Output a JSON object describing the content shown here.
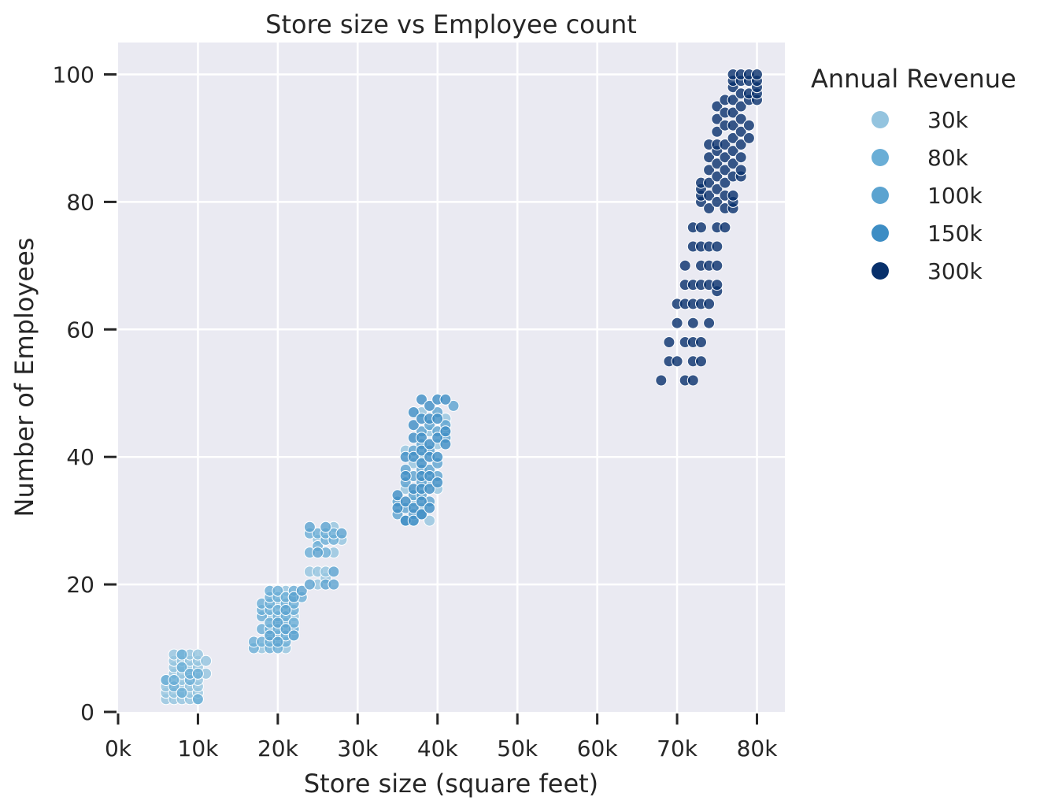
{
  "chart_data": {
    "type": "scatter",
    "title": "Store size vs Employee count",
    "xlabel": "Store size (square feet)",
    "ylabel": "Number of Employees",
    "xlim": [
      0,
      83500
    ],
    "ylim": [
      0,
      105
    ],
    "x_ticks": [
      {
        "value": 0,
        "label": "0k"
      },
      {
        "value": 10000,
        "label": "10k"
      },
      {
        "value": 20000,
        "label": "20k"
      },
      {
        "value": 30000,
        "label": "30k"
      },
      {
        "value": 40000,
        "label": "40k"
      },
      {
        "value": 50000,
        "label": "50k"
      },
      {
        "value": 60000,
        "label": "60k"
      },
      {
        "value": 70000,
        "label": "70k"
      },
      {
        "value": 80000,
        "label": "80k"
      }
    ],
    "y_ticks": [
      {
        "value": 0,
        "label": "0"
      },
      {
        "value": 20,
        "label": "20"
      },
      {
        "value": 40,
        "label": "40"
      },
      {
        "value": 60,
        "label": "60"
      },
      {
        "value": 80,
        "label": "80"
      },
      {
        "value": 100,
        "label": "100"
      }
    ],
    "grid": true,
    "legend": {
      "title": "Annual Revenue",
      "placement": "outside-right"
    },
    "series": [
      {
        "name": "30k",
        "color": "#94c4df",
        "points": [
          [
            6000,
            2
          ],
          [
            6000,
            3
          ],
          [
            6000,
            4
          ],
          [
            6000,
            5
          ],
          [
            7000,
            2
          ],
          [
            7000,
            3
          ],
          [
            7000,
            5
          ],
          [
            7000,
            6
          ],
          [
            7000,
            7
          ],
          [
            7000,
            8
          ],
          [
            7000,
            9
          ],
          [
            8000,
            2
          ],
          [
            8000,
            3
          ],
          [
            8000,
            4
          ],
          [
            8000,
            5
          ],
          [
            8000,
            6
          ],
          [
            8000,
            7
          ],
          [
            8000,
            8
          ],
          [
            8000,
            9
          ],
          [
            9000,
            2
          ],
          [
            9000,
            3
          ],
          [
            9000,
            4
          ],
          [
            9000,
            6
          ],
          [
            9000,
            7
          ],
          [
            9000,
            8
          ],
          [
            9000,
            9
          ],
          [
            10000,
            2
          ],
          [
            10000,
            3
          ],
          [
            10000,
            4
          ],
          [
            10000,
            5
          ],
          [
            10000,
            6
          ],
          [
            10000,
            7
          ],
          [
            10000,
            8
          ],
          [
            10000,
            9
          ],
          [
            11000,
            6
          ],
          [
            11000,
            8
          ],
          [
            18000,
            10
          ],
          [
            19000,
            12
          ],
          [
            19000,
            15
          ],
          [
            20000,
            11
          ],
          [
            20000,
            14
          ],
          [
            20000,
            17
          ],
          [
            21000,
            10
          ],
          [
            21000,
            13
          ],
          [
            21000,
            16
          ],
          [
            21000,
            19
          ],
          [
            22000,
            12
          ],
          [
            22000,
            15
          ],
          [
            24000,
            22
          ],
          [
            25000,
            20
          ],
          [
            25000,
            22
          ],
          [
            25000,
            27
          ],
          [
            26000,
            21
          ],
          [
            26000,
            22
          ],
          [
            27000,
            25
          ],
          [
            27000,
            29
          ],
          [
            28000,
            27
          ],
          [
            36000,
            35
          ],
          [
            36000,
            41
          ],
          [
            37000,
            30
          ],
          [
            37000,
            33
          ],
          [
            37000,
            39
          ],
          [
            38000,
            32
          ],
          [
            38000,
            40
          ],
          [
            38000,
            47
          ],
          [
            39000,
            30
          ],
          [
            39000,
            36
          ],
          [
            39000,
            44
          ],
          [
            40000,
            35
          ],
          [
            40000,
            42
          ],
          [
            41000,
            44
          ],
          [
            41000,
            46
          ]
        ]
      },
      {
        "name": "80k",
        "color": "#6aaed6",
        "points": [
          [
            6000,
            5
          ],
          [
            7000,
            4
          ],
          [
            7000,
            5
          ],
          [
            8000,
            3
          ],
          [
            8000,
            7
          ],
          [
            8000,
            9
          ],
          [
            9000,
            5
          ],
          [
            9000,
            6
          ],
          [
            10000,
            2
          ],
          [
            10000,
            6
          ],
          [
            17000,
            10
          ],
          [
            17000,
            11
          ],
          [
            18000,
            11
          ],
          [
            18000,
            13
          ],
          [
            18000,
            15
          ],
          [
            18000,
            16
          ],
          [
            18000,
            17
          ],
          [
            19000,
            10
          ],
          [
            19000,
            11
          ],
          [
            19000,
            13
          ],
          [
            19000,
            14
          ],
          [
            19000,
            16
          ],
          [
            19000,
            17
          ],
          [
            19000,
            18
          ],
          [
            19000,
            19
          ],
          [
            20000,
            10
          ],
          [
            20000,
            12
          ],
          [
            20000,
            13
          ],
          [
            20000,
            15
          ],
          [
            20000,
            16
          ],
          [
            20000,
            18
          ],
          [
            20000,
            19
          ],
          [
            21000,
            11
          ],
          [
            21000,
            12
          ],
          [
            21000,
            14
          ],
          [
            21000,
            15
          ],
          [
            21000,
            17
          ],
          [
            21000,
            18
          ],
          [
            22000,
            13
          ],
          [
            22000,
            14
          ],
          [
            22000,
            16
          ],
          [
            22000,
            17
          ],
          [
            22000,
            18
          ],
          [
            22000,
            19
          ],
          [
            23000,
            18
          ],
          [
            24000,
            25
          ],
          [
            24000,
            28
          ],
          [
            25000,
            26
          ],
          [
            25000,
            28
          ],
          [
            26000,
            25
          ],
          [
            26000,
            27
          ],
          [
            26000,
            28
          ],
          [
            27000,
            27
          ],
          [
            27000,
            28
          ]
        ]
      },
      {
        "name": "100k",
        "color": "#5ba3d0",
        "points": [
          [
            19000,
            12
          ],
          [
            20000,
            11
          ],
          [
            20000,
            14
          ],
          [
            21000,
            13
          ],
          [
            21000,
            16
          ],
          [
            22000,
            12
          ],
          [
            22000,
            18
          ],
          [
            23000,
            19
          ],
          [
            24000,
            20
          ],
          [
            24000,
            29
          ],
          [
            25000,
            25
          ],
          [
            26000,
            20
          ],
          [
            26000,
            29
          ],
          [
            27000,
            20
          ],
          [
            27000,
            22
          ],
          [
            28000,
            28
          ],
          [
            35000,
            31
          ],
          [
            35000,
            33
          ],
          [
            36000,
            30
          ],
          [
            36000,
            32
          ],
          [
            36000,
            36
          ],
          [
            36000,
            38
          ],
          [
            37000,
            31
          ],
          [
            37000,
            34
          ],
          [
            37000,
            37
          ],
          [
            37000,
            41
          ],
          [
            38000,
            31
          ],
          [
            38000,
            34
          ],
          [
            38000,
            36
          ],
          [
            38000,
            38
          ],
          [
            38000,
            42
          ],
          [
            38000,
            44
          ],
          [
            39000,
            33
          ],
          [
            39000,
            38
          ],
          [
            39000,
            41
          ],
          [
            39000,
            45
          ],
          [
            40000,
            37
          ],
          [
            40000,
            39
          ],
          [
            40000,
            44
          ],
          [
            40000,
            47
          ],
          [
            41000,
            43
          ],
          [
            41000,
            45
          ],
          [
            42000,
            48
          ]
        ]
      },
      {
        "name": "150k",
        "color": "#3d8dc4",
        "points": [
          [
            35000,
            32
          ],
          [
            35000,
            34
          ],
          [
            36000,
            30
          ],
          [
            36000,
            33
          ],
          [
            36000,
            37
          ],
          [
            36000,
            40
          ],
          [
            37000,
            30
          ],
          [
            37000,
            32
          ],
          [
            37000,
            35
          ],
          [
            37000,
            40
          ],
          [
            37000,
            43
          ],
          [
            37000,
            45
          ],
          [
            37000,
            47
          ],
          [
            38000,
            31
          ],
          [
            38000,
            33
          ],
          [
            38000,
            35
          ],
          [
            38000,
            37
          ],
          [
            38000,
            39
          ],
          [
            38000,
            41
          ],
          [
            38000,
            43
          ],
          [
            38000,
            46
          ],
          [
            38000,
            49
          ],
          [
            39000,
            32
          ],
          [
            39000,
            35
          ],
          [
            39000,
            37
          ],
          [
            39000,
            40
          ],
          [
            39000,
            42
          ],
          [
            39000,
            46
          ],
          [
            39000,
            48
          ],
          [
            40000,
            36
          ],
          [
            40000,
            40
          ],
          [
            40000,
            43
          ],
          [
            40000,
            46
          ],
          [
            40000,
            49
          ],
          [
            41000,
            42
          ],
          [
            41000,
            44
          ],
          [
            41000,
            49
          ]
        ]
      },
      {
        "name": "300k",
        "color": "#08306b",
        "points": [
          [
            68000,
            52
          ],
          [
            69000,
            55
          ],
          [
            69000,
            58
          ],
          [
            70000,
            55
          ],
          [
            70000,
            61
          ],
          [
            70000,
            64
          ],
          [
            71000,
            52
          ],
          [
            71000,
            58
          ],
          [
            71000,
            64
          ],
          [
            71000,
            67
          ],
          [
            71000,
            70
          ],
          [
            72000,
            52
          ],
          [
            72000,
            55
          ],
          [
            72000,
            58
          ],
          [
            72000,
            61
          ],
          [
            72000,
            64
          ],
          [
            72000,
            67
          ],
          [
            72000,
            73
          ],
          [
            72000,
            76
          ],
          [
            73000,
            55
          ],
          [
            73000,
            58
          ],
          [
            73000,
            64
          ],
          [
            73000,
            67
          ],
          [
            73000,
            70
          ],
          [
            73000,
            73
          ],
          [
            73000,
            76
          ],
          [
            73000,
            80
          ],
          [
            73000,
            81
          ],
          [
            73000,
            82
          ],
          [
            73000,
            83
          ],
          [
            74000,
            61
          ],
          [
            74000,
            64
          ],
          [
            74000,
            67
          ],
          [
            74000,
            70
          ],
          [
            74000,
            73
          ],
          [
            74000,
            79
          ],
          [
            74000,
            81
          ],
          [
            74000,
            83
          ],
          [
            74000,
            85
          ],
          [
            74000,
            87
          ],
          [
            74000,
            89
          ],
          [
            75000,
            66
          ],
          [
            75000,
            67
          ],
          [
            75000,
            70
          ],
          [
            75000,
            73
          ],
          [
            75000,
            76
          ],
          [
            75000,
            80
          ],
          [
            75000,
            82
          ],
          [
            75000,
            84
          ],
          [
            75000,
            86
          ],
          [
            75000,
            88
          ],
          [
            75000,
            89
          ],
          [
            75000,
            91
          ],
          [
            75000,
            93
          ],
          [
            75000,
            95
          ],
          [
            76000,
            76
          ],
          [
            76000,
            79
          ],
          [
            76000,
            81
          ],
          [
            76000,
            83
          ],
          [
            76000,
            85
          ],
          [
            76000,
            87
          ],
          [
            76000,
            89
          ],
          [
            76000,
            92
          ],
          [
            76000,
            94
          ],
          [
            76000,
            96
          ],
          [
            77000,
            79
          ],
          [
            77000,
            80
          ],
          [
            77000,
            81
          ],
          [
            77000,
            84
          ],
          [
            77000,
            86
          ],
          [
            77000,
            88
          ],
          [
            77000,
            90
          ],
          [
            77000,
            92
          ],
          [
            77000,
            94
          ],
          [
            77000,
            96
          ],
          [
            77000,
            98
          ],
          [
            77000,
            99
          ],
          [
            77000,
            100
          ],
          [
            78000,
            84
          ],
          [
            78000,
            85
          ],
          [
            78000,
            87
          ],
          [
            78000,
            89
          ],
          [
            78000,
            91
          ],
          [
            78000,
            93
          ],
          [
            78000,
            95
          ],
          [
            78000,
            97
          ],
          [
            78000,
            99
          ],
          [
            78000,
            100
          ],
          [
            79000,
            90
          ],
          [
            79000,
            92
          ],
          [
            79000,
            96
          ],
          [
            79000,
            97
          ],
          [
            79000,
            99
          ],
          [
            79000,
            100
          ],
          [
            80000,
            96
          ],
          [
            80000,
            97
          ],
          [
            80000,
            98
          ],
          [
            80000,
            99
          ],
          [
            80000,
            100
          ]
        ]
      }
    ]
  }
}
